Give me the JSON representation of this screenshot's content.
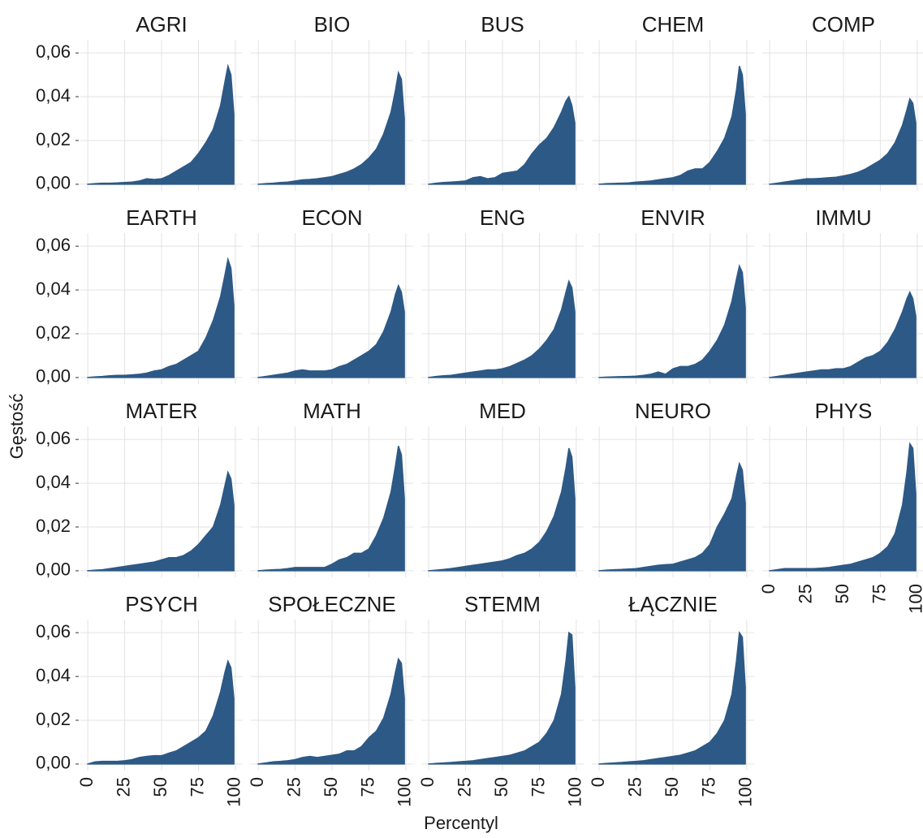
{
  "chart_data": {
    "type": "area",
    "y_label": "Gęstość",
    "x_label": "Percentyl",
    "color": "#2d5986",
    "grid": true,
    "xlim": [
      -5,
      105
    ],
    "xticks": [
      0,
      25,
      50,
      75,
      100
    ],
    "ylim": [
      -0.003,
      0.066
    ],
    "yticks": [
      {
        "value": 0,
        "label": "0,00"
      },
      {
        "value": 0.02,
        "label": "0,02"
      },
      {
        "value": 0.04,
        "label": "0,04"
      },
      {
        "value": 0.06,
        "label": "0,06"
      }
    ],
    "x": [
      0,
      5,
      10,
      15,
      20,
      25,
      30,
      35,
      40,
      45,
      50,
      55,
      60,
      65,
      70,
      75,
      80,
      85,
      90,
      93,
      95,
      97,
      99
    ],
    "series": [
      {
        "name": "AGRI",
        "values": [
          0,
          0.0003,
          0.0005,
          0.0005,
          0.0006,
          0.0008,
          0.001,
          0.0015,
          0.0025,
          0.0022,
          0.0025,
          0.004,
          0.006,
          0.008,
          0.01,
          0.014,
          0.019,
          0.025,
          0.036,
          0.047,
          0.054,
          0.05,
          0.032
        ]
      },
      {
        "name": "BIO",
        "values": [
          0,
          0.0003,
          0.0005,
          0.0008,
          0.001,
          0.0015,
          0.002,
          0.0022,
          0.0025,
          0.003,
          0.0035,
          0.0045,
          0.0055,
          0.007,
          0.009,
          0.012,
          0.016,
          0.023,
          0.033,
          0.043,
          0.051,
          0.048,
          0.03
        ]
      },
      {
        "name": "BUS",
        "values": [
          0,
          0.0005,
          0.0008,
          0.001,
          0.0012,
          0.0015,
          0.003,
          0.0035,
          0.0025,
          0.003,
          0.005,
          0.0055,
          0.006,
          0.009,
          0.014,
          0.018,
          0.021,
          0.026,
          0.033,
          0.038,
          0.04,
          0.036,
          0.028
        ]
      },
      {
        "name": "CHEM",
        "values": [
          0,
          0.0003,
          0.0004,
          0.0005,
          0.0006,
          0.001,
          0.0012,
          0.0015,
          0.002,
          0.0025,
          0.003,
          0.004,
          0.006,
          0.007,
          0.007,
          0.01,
          0.015,
          0.021,
          0.031,
          0.043,
          0.054,
          0.05,
          0.032
        ]
      },
      {
        "name": "COMP",
        "values": [
          0,
          0.0005,
          0.001,
          0.0015,
          0.002,
          0.0025,
          0.0025,
          0.0027,
          0.003,
          0.0032,
          0.0038,
          0.0045,
          0.0055,
          0.007,
          0.009,
          0.011,
          0.014,
          0.019,
          0.027,
          0.034,
          0.039,
          0.037,
          0.028
        ]
      },
      {
        "name": "EARTH",
        "values": [
          0,
          0.0003,
          0.0005,
          0.0008,
          0.001,
          0.001,
          0.0012,
          0.0015,
          0.002,
          0.003,
          0.0035,
          0.005,
          0.006,
          0.008,
          0.01,
          0.012,
          0.018,
          0.026,
          0.037,
          0.047,
          0.054,
          0.05,
          0.033
        ]
      },
      {
        "name": "ECON",
        "values": [
          0,
          0.0005,
          0.001,
          0.0015,
          0.002,
          0.003,
          0.0035,
          0.003,
          0.003,
          0.003,
          0.0035,
          0.005,
          0.006,
          0.008,
          0.01,
          0.012,
          0.015,
          0.021,
          0.03,
          0.038,
          0.042,
          0.039,
          0.03
        ]
      },
      {
        "name": "ENG",
        "values": [
          0,
          0.0005,
          0.0008,
          0.001,
          0.0015,
          0.002,
          0.0025,
          0.003,
          0.0035,
          0.0035,
          0.004,
          0.005,
          0.0065,
          0.008,
          0.01,
          0.013,
          0.017,
          0.022,
          0.031,
          0.039,
          0.044,
          0.041,
          0.03
        ]
      },
      {
        "name": "ENVIR",
        "values": [
          0,
          0.0002,
          0.0003,
          0.0004,
          0.0005,
          0.0006,
          0.001,
          0.0015,
          0.0025,
          0.0015,
          0.004,
          0.005,
          0.005,
          0.006,
          0.008,
          0.012,
          0.017,
          0.024,
          0.035,
          0.045,
          0.051,
          0.048,
          0.032
        ]
      },
      {
        "name": "IMMU",
        "values": [
          0,
          0.0005,
          0.001,
          0.0015,
          0.002,
          0.0025,
          0.003,
          0.0035,
          0.0035,
          0.004,
          0.004,
          0.005,
          0.007,
          0.009,
          0.01,
          0.012,
          0.016,
          0.022,
          0.03,
          0.036,
          0.039,
          0.036,
          0.028
        ]
      },
      {
        "name": "MATER",
        "values": [
          0,
          0.0003,
          0.0005,
          0.001,
          0.0015,
          0.002,
          0.0025,
          0.003,
          0.0035,
          0.004,
          0.005,
          0.006,
          0.006,
          0.007,
          0.009,
          0.012,
          0.016,
          0.02,
          0.03,
          0.039,
          0.045,
          0.042,
          0.03
        ]
      },
      {
        "name": "MATH",
        "values": [
          0,
          0.0003,
          0.0005,
          0.0006,
          0.001,
          0.0015,
          0.0015,
          0.0015,
          0.0015,
          0.0015,
          0.003,
          0.005,
          0.006,
          0.008,
          0.008,
          0.01,
          0.016,
          0.024,
          0.036,
          0.048,
          0.057,
          0.053,
          0.033
        ]
      },
      {
        "name": "MED",
        "values": [
          0,
          0.0003,
          0.0006,
          0.001,
          0.0015,
          0.002,
          0.0025,
          0.003,
          0.0035,
          0.004,
          0.0045,
          0.0055,
          0.007,
          0.008,
          0.01,
          0.013,
          0.018,
          0.025,
          0.036,
          0.047,
          0.056,
          0.052,
          0.033
        ]
      },
      {
        "name": "NEURO",
        "values": [
          0,
          0.0003,
          0.0005,
          0.0006,
          0.0008,
          0.001,
          0.0015,
          0.002,
          0.0025,
          0.0028,
          0.003,
          0.004,
          0.005,
          0.006,
          0.008,
          0.012,
          0.02,
          0.026,
          0.033,
          0.043,
          0.049,
          0.046,
          0.031
        ]
      },
      {
        "name": "PHYS",
        "values": [
          0,
          0.0005,
          0.001,
          0.001,
          0.001,
          0.001,
          0.001,
          0.0012,
          0.0015,
          0.002,
          0.0025,
          0.003,
          0.004,
          0.005,
          0.006,
          0.008,
          0.011,
          0.017,
          0.03,
          0.045,
          0.058,
          0.056,
          0.035
        ]
      },
      {
        "name": "PSYCH",
        "values": [
          0,
          0.001,
          0.0012,
          0.0012,
          0.0012,
          0.0015,
          0.002,
          0.003,
          0.0035,
          0.0038,
          0.0038,
          0.005,
          0.006,
          0.008,
          0.01,
          0.012,
          0.015,
          0.022,
          0.033,
          0.042,
          0.047,
          0.044,
          0.03
        ]
      },
      {
        "name": "SPOŁECZNE",
        "values": [
          0,
          0.0005,
          0.001,
          0.0012,
          0.0015,
          0.002,
          0.003,
          0.0035,
          0.003,
          0.0035,
          0.004,
          0.0045,
          0.006,
          0.006,
          0.008,
          0.012,
          0.015,
          0.021,
          0.032,
          0.042,
          0.048,
          0.046,
          0.03
        ]
      },
      {
        "name": "STEMM",
        "values": [
          0,
          0.0003,
          0.0005,
          0.0007,
          0.001,
          0.0012,
          0.0015,
          0.002,
          0.0025,
          0.003,
          0.0035,
          0.004,
          0.005,
          0.006,
          0.008,
          0.01,
          0.014,
          0.02,
          0.032,
          0.047,
          0.06,
          0.059,
          0.035
        ]
      },
      {
        "name": "ŁĄCZNIE",
        "values": [
          0,
          0.0003,
          0.0005,
          0.0007,
          0.001,
          0.0012,
          0.0015,
          0.002,
          0.0025,
          0.003,
          0.0035,
          0.004,
          0.005,
          0.006,
          0.008,
          0.01,
          0.014,
          0.02,
          0.032,
          0.047,
          0.06,
          0.058,
          0.035
        ]
      }
    ]
  }
}
